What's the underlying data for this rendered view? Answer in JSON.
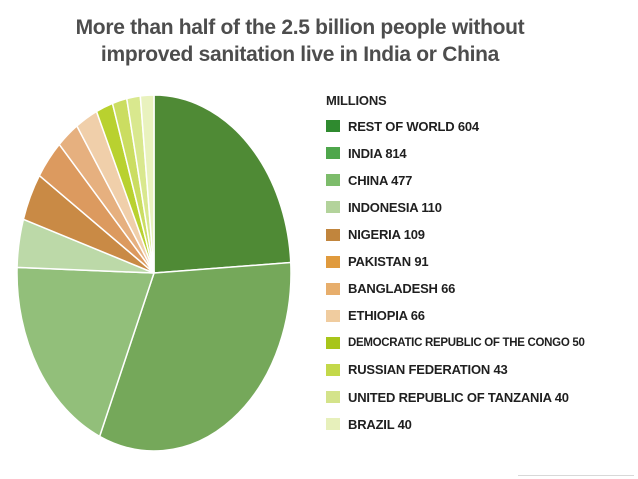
{
  "title_line1": "More than half of the 2.5 billion people without",
  "title_line2": "improved sanitation live in India or China",
  "legend_unit": "MILLIONS",
  "chart_data": {
    "type": "pie",
    "title": "More than half of the 2.5 billion people without improved sanitation live in India or China",
    "unit": "MILLIONS",
    "slices": [
      {
        "label": "REST OF WORLD",
        "value": 604,
        "color": "#4f8a35"
      },
      {
        "label": "INDIA",
        "value": 814,
        "color": "#75a85a"
      },
      {
        "label": "CHINA",
        "value": 477,
        "color": "#92bf7a"
      },
      {
        "label": "INDONESIA",
        "value": 110,
        "color": "#bcd9a8"
      },
      {
        "label": "NIGERIA",
        "value": 109,
        "color": "#c98a45"
      },
      {
        "label": "PAKISTAN",
        "value": 91,
        "color": "#dc9a5f"
      },
      {
        "label": "BANGLADESH",
        "value": 66,
        "color": "#e6b07f"
      },
      {
        "label": "ETHIOPIA",
        "value": 66,
        "color": "#f0cfaa"
      },
      {
        "label": "DEMOCRATIC REPUBLIC OF THE CONGO",
        "value": 50,
        "color": "#b9d12f"
      },
      {
        "label": "RUSSIAN FEDERATION",
        "value": 43,
        "color": "#cbdd61"
      },
      {
        "label": "UNITED REPUBLIC OF TANZANIA",
        "value": 40,
        "color": "#d9e88e"
      },
      {
        "label": "BRAZIL",
        "value": 40,
        "color": "#e9f2be"
      }
    ]
  },
  "legend": [
    {
      "text": "REST OF WORLD 604",
      "color": "#2f8a2f"
    },
    {
      "text": "INDIA 814",
      "color": "#4ea64b"
    },
    {
      "text": "CHINA 477",
      "color": "#7dbc6b"
    },
    {
      "text": "INDONESIA 110",
      "color": "#b3d39b"
    },
    {
      "text": "NIGERIA 109",
      "color": "#c1853d"
    },
    {
      "text": "PAKISTAN 91",
      "color": "#e09a3d"
    },
    {
      "text": "BANGLADESH 66",
      "color": "#e7ae6c"
    },
    {
      "text": "ETHIOPIA 66",
      "color": "#f0cc9f"
    },
    {
      "text": "DEMOCRATIC REPUBLIC OF THE CONGO 50",
      "color": "#a8c51a"
    },
    {
      "text": "RUSSIAN FEDERATION 43",
      "color": "#c3d84a"
    },
    {
      "text": "UNITED REPUBLIC OF TANZANIA 40",
      "color": "#d4e38a"
    },
    {
      "text": "BRAZIL 40",
      "color": "#e7f0bb"
    }
  ]
}
